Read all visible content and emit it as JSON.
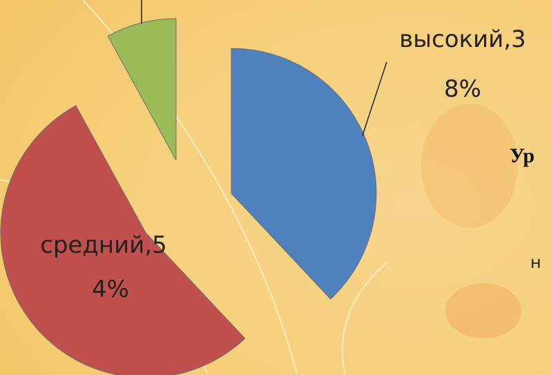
{
  "chart_data": {
    "type": "pie",
    "categories": [
      "высокий",
      "средний",
      null
    ],
    "values": [
      38,
      54,
      8
    ],
    "value_labels": [
      [
        "высокий,3",
        "8%"
      ],
      [
        "средний,5",
        "4%"
      ],
      null
    ],
    "colors": [
      "#4f81bd",
      "#c0504d",
      "#9bbb59"
    ]
  },
  "slide_text": {
    "heading": "Ур",
    "fragment": "н"
  }
}
